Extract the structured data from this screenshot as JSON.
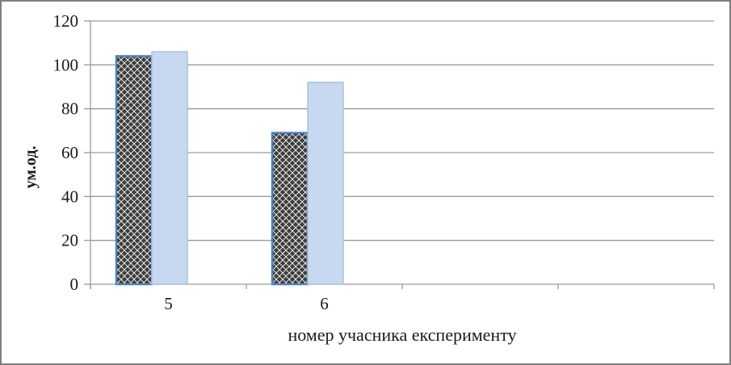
{
  "chart_data": {
    "type": "bar",
    "title": "",
    "xlabel": "номер учасника експерименту",
    "ylabel": "ум.од.",
    "categories": [
      "5",
      "6",
      "",
      ""
    ],
    "series": [
      {
        "name": "diamond-pattern-bars",
        "values": [
          104,
          69
        ],
        "fill_style": "black-diamond-checker-pattern-on-white",
        "border_color": "#4f81bd",
        "pattern_color": "#3d3d3d",
        "pattern_background": "#ffffff"
      },
      {
        "name": "solid-blue-bars",
        "values": [
          106,
          92
        ],
        "fill_style": "solid",
        "fill": "#c6d9f0",
        "border_color": "#a8c0de"
      }
    ],
    "ylim": [
      0,
      120
    ],
    "yticks": [
      0,
      20,
      40,
      60,
      80,
      100,
      120
    ],
    "grid": "horizontal-only",
    "legend_position": "none",
    "colors": {
      "gridline": "#9a9a9a",
      "axis": "#9a9a9a",
      "text": "#1a1a1a",
      "frame_border": "#7f7f7f",
      "background": "#ffffff"
    }
  }
}
